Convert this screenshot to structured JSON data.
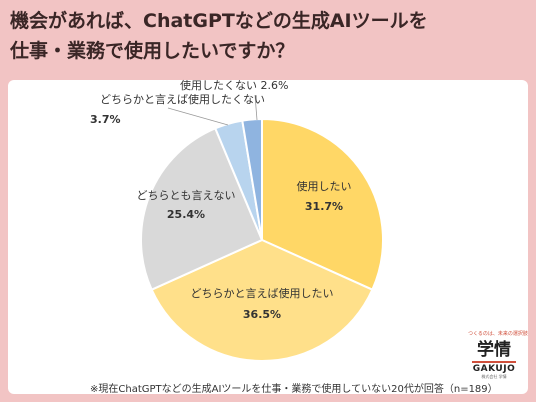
{
  "title_lines": [
    "機会があれば、ChatGPTなどの生成AIツールを",
    "仕事・業務で使用したいですか？"
  ],
  "footnote": "※現在ChatGPTなどの生成AIツールを仕事・業務で使用していない20代が回答（n=189）",
  "logo": {
    "tagline": "つくるのは、未来の選択肢",
    "kanji": "学情",
    "name": "GAKUJO",
    "sub": "株式会社 学情"
  },
  "chart_data": {
    "type": "pie",
    "title": "",
    "categories": [
      "使用したい",
      "どちらかと言えば使用したい",
      "どちらとも言えない",
      "どちらかと言えば使用したくない",
      "使用したくない"
    ],
    "values": [
      31.7,
      36.5,
      25.4,
      3.7,
      2.6
    ],
    "value_labels": [
      "31.7%",
      "36.5%",
      "25.4%",
      "3.7%",
      "2.6%"
    ],
    "colors": [
      "#ffd766",
      "#ffe08a",
      "#d9d9d9",
      "#b8d4ee",
      "#8fb4e0"
    ]
  }
}
